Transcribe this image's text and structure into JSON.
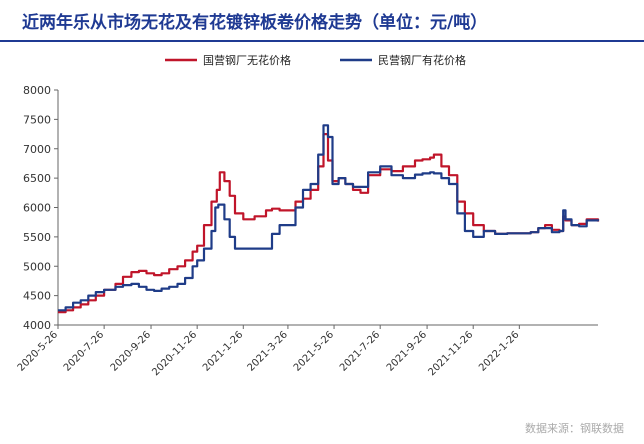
{
  "title": "近两年乐从市场无花及有花镀锌板卷价格走势（单位：元/吨）",
  "source": "数据来源：钢联数据",
  "colors": {
    "title": "#1f3a93",
    "series_red": "#c0152a",
    "series_blue": "#1f3c88"
  },
  "chart_data": {
    "type": "line",
    "ylim": [
      4000,
      8000
    ],
    "yticks": [
      4000,
      4500,
      5000,
      5500,
      6000,
      6500,
      7000,
      7500,
      8000
    ],
    "xlim": [
      "2020-05-26",
      "2022-05-10"
    ],
    "xticks": [
      "2020-5-26",
      "2020-7-26",
      "2020-9-26",
      "2020-11-26",
      "2021-1-26",
      "2021-3-26",
      "2021-5-26",
      "2021-7-26",
      "2021-9-26",
      "2021-11-26",
      "2022-1-26"
    ],
    "legend_position": "top-center",
    "grid": false,
    "series": [
      {
        "name": "国营钢厂无花价格",
        "color": "#c0152a",
        "points": [
          [
            "2020-05-26",
            4220
          ],
          [
            "2020-06-05",
            4250
          ],
          [
            "2020-06-15",
            4300
          ],
          [
            "2020-06-25",
            4350
          ],
          [
            "2020-07-05",
            4420
          ],
          [
            "2020-07-15",
            4500
          ],
          [
            "2020-07-26",
            4600
          ],
          [
            "2020-08-10",
            4700
          ],
          [
            "2020-08-20",
            4820
          ],
          [
            "2020-08-31",
            4900
          ],
          [
            "2020-09-10",
            4920
          ],
          [
            "2020-09-20",
            4880
          ],
          [
            "2020-09-30",
            4850
          ],
          [
            "2020-10-10",
            4880
          ],
          [
            "2020-10-20",
            4950
          ],
          [
            "2020-10-31",
            5000
          ],
          [
            "2020-11-10",
            5100
          ],
          [
            "2020-11-20",
            5250
          ],
          [
            "2020-11-26",
            5350
          ],
          [
            "2020-12-05",
            5700
          ],
          [
            "2020-12-15",
            6100
          ],
          [
            "2020-12-22",
            6300
          ],
          [
            "2020-12-26",
            6600
          ],
          [
            "2021-01-01",
            6450
          ],
          [
            "2021-01-08",
            6200
          ],
          [
            "2021-01-15",
            5900
          ],
          [
            "2021-01-26",
            5800
          ],
          [
            "2021-02-10",
            5850
          ],
          [
            "2021-02-25",
            5950
          ],
          [
            "2021-03-05",
            5980
          ],
          [
            "2021-03-15",
            5950
          ],
          [
            "2021-03-26",
            5950
          ],
          [
            "2021-04-05",
            6100
          ],
          [
            "2021-04-15",
            6150
          ],
          [
            "2021-04-25",
            6300
          ],
          [
            "2021-05-05",
            6700
          ],
          [
            "2021-05-12",
            7250
          ],
          [
            "2021-05-18",
            6800
          ],
          [
            "2021-05-24",
            6450
          ],
          [
            "2021-06-01",
            6500
          ],
          [
            "2021-06-10",
            6400
          ],
          [
            "2021-06-20",
            6300
          ],
          [
            "2021-06-30",
            6250
          ],
          [
            "2021-07-10",
            6550
          ],
          [
            "2021-07-26",
            6650
          ],
          [
            "2021-08-10",
            6620
          ],
          [
            "2021-08-25",
            6700
          ],
          [
            "2021-09-10",
            6800
          ],
          [
            "2021-09-20",
            6820
          ],
          [
            "2021-09-30",
            6850
          ],
          [
            "2021-10-05",
            6900
          ],
          [
            "2021-10-15",
            6700
          ],
          [
            "2021-10-25",
            6550
          ],
          [
            "2021-11-05",
            6100
          ],
          [
            "2021-11-15",
            5900
          ],
          [
            "2021-11-26",
            5700
          ],
          [
            "2021-12-10",
            5600
          ],
          [
            "2021-12-25",
            5550
          ],
          [
            "2022-01-10",
            5560
          ],
          [
            "2022-01-26",
            5560
          ],
          [
            "2022-02-10",
            5580
          ],
          [
            "2022-02-20",
            5650
          ],
          [
            "2022-03-01",
            5700
          ],
          [
            "2022-03-10",
            5620
          ],
          [
            "2022-03-20",
            5600
          ],
          [
            "2022-03-25",
            5850
          ],
          [
            "2022-03-28",
            5780
          ],
          [
            "2022-04-05",
            5700
          ],
          [
            "2022-04-15",
            5720
          ],
          [
            "2022-04-25",
            5800
          ],
          [
            "2022-05-10",
            5760
          ]
        ]
      },
      {
        "name": "民营钢厂有花价格",
        "color": "#1f3c88",
        "points": [
          [
            "2020-05-26",
            4250
          ],
          [
            "2020-06-05",
            4300
          ],
          [
            "2020-06-15",
            4380
          ],
          [
            "2020-06-25",
            4420
          ],
          [
            "2020-07-05",
            4500
          ],
          [
            "2020-07-15",
            4560
          ],
          [
            "2020-07-26",
            4600
          ],
          [
            "2020-08-10",
            4650
          ],
          [
            "2020-08-20",
            4680
          ],
          [
            "2020-08-31",
            4700
          ],
          [
            "2020-09-10",
            4650
          ],
          [
            "2020-09-20",
            4600
          ],
          [
            "2020-09-30",
            4580
          ],
          [
            "2020-10-10",
            4620
          ],
          [
            "2020-10-20",
            4650
          ],
          [
            "2020-10-31",
            4700
          ],
          [
            "2020-11-10",
            4800
          ],
          [
            "2020-11-20",
            5000
          ],
          [
            "2020-11-26",
            5100
          ],
          [
            "2020-12-05",
            5300
          ],
          [
            "2020-12-15",
            5600
          ],
          [
            "2020-12-20",
            6000
          ],
          [
            "2020-12-24",
            6050
          ],
          [
            "2021-01-01",
            5800
          ],
          [
            "2021-01-08",
            5500
          ],
          [
            "2021-01-15",
            5300
          ],
          [
            "2021-01-26",
            5300
          ],
          [
            "2021-02-10",
            5300
          ],
          [
            "2021-02-25",
            5300
          ],
          [
            "2021-03-05",
            5550
          ],
          [
            "2021-03-15",
            5700
          ],
          [
            "2021-03-26",
            5700
          ],
          [
            "2021-04-05",
            6000
          ],
          [
            "2021-04-15",
            6300
          ],
          [
            "2021-04-25",
            6400
          ],
          [
            "2021-05-05",
            6900
          ],
          [
            "2021-05-12",
            7400
          ],
          [
            "2021-05-18",
            7200
          ],
          [
            "2021-05-24",
            6400
          ],
          [
            "2021-06-01",
            6500
          ],
          [
            "2021-06-10",
            6400
          ],
          [
            "2021-06-20",
            6350
          ],
          [
            "2021-06-30",
            6350
          ],
          [
            "2021-07-10",
            6600
          ],
          [
            "2021-07-26",
            6700
          ],
          [
            "2021-08-10",
            6550
          ],
          [
            "2021-08-25",
            6500
          ],
          [
            "2021-09-10",
            6560
          ],
          [
            "2021-09-20",
            6580
          ],
          [
            "2021-09-30",
            6600
          ],
          [
            "2021-10-05",
            6580
          ],
          [
            "2021-10-15",
            6500
          ],
          [
            "2021-10-25",
            6400
          ],
          [
            "2021-11-05",
            5900
          ],
          [
            "2021-11-15",
            5600
          ],
          [
            "2021-11-26",
            5500
          ],
          [
            "2021-12-10",
            5600
          ],
          [
            "2021-12-25",
            5550
          ],
          [
            "2022-01-10",
            5560
          ],
          [
            "2022-01-26",
            5560
          ],
          [
            "2022-02-10",
            5580
          ],
          [
            "2022-02-20",
            5650
          ],
          [
            "2022-03-01",
            5650
          ],
          [
            "2022-03-10",
            5580
          ],
          [
            "2022-03-20",
            5600
          ],
          [
            "2022-03-25",
            5950
          ],
          [
            "2022-03-28",
            5800
          ],
          [
            "2022-04-05",
            5700
          ],
          [
            "2022-04-15",
            5680
          ],
          [
            "2022-04-25",
            5780
          ],
          [
            "2022-05-10",
            5800
          ]
        ]
      }
    ]
  }
}
